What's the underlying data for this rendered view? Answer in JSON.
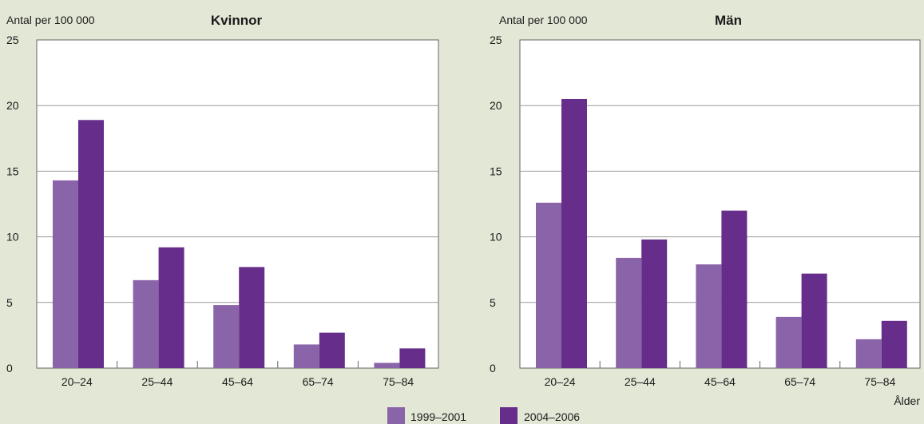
{
  "chart_data": [
    {
      "type": "bar",
      "title": "Kvinnor",
      "ylabel": "Antal per 100 000",
      "xlabel": "",
      "categories": [
        "20–24",
        "25–44",
        "45–64",
        "65–74",
        "75–84"
      ],
      "series": [
        {
          "name": "1999–2001",
          "values": [
            14.3,
            6.7,
            4.8,
            1.8,
            0.4
          ]
        },
        {
          "name": "2004–2006",
          "values": [
            18.9,
            9.2,
            7.7,
            2.7,
            1.5
          ]
        }
      ],
      "ylim": [
        0,
        25
      ],
      "yticks": [
        "0",
        "5",
        "10",
        "15",
        "20",
        "25"
      ],
      "grid": true
    },
    {
      "type": "bar",
      "title": "Män",
      "ylabel": "Antal per 100 000",
      "xlabel": "Ålder",
      "categories": [
        "20–24",
        "25–44",
        "45–64",
        "65–74",
        "75–84"
      ],
      "series": [
        {
          "name": "1999–2001",
          "values": [
            12.6,
            8.4,
            7.9,
            3.9,
            2.2
          ]
        },
        {
          "name": "2004–2006",
          "values": [
            20.5,
            9.8,
            12.0,
            7.2,
            3.6
          ]
        }
      ],
      "ylim": [
        0,
        25
      ],
      "yticks": [
        "0",
        "5",
        "10",
        "15",
        "20",
        "25"
      ],
      "grid": true
    }
  ],
  "legend": {
    "placement": "bottom-center",
    "items": [
      {
        "label": "1999–2001",
        "color": "#8a64a8"
      },
      {
        "label": "2004–2006",
        "color": "#662d8a"
      }
    ]
  },
  "colors": {
    "background": "#e3e7d6",
    "plot_area": "#ffffff",
    "grid": "#999999",
    "axis": "#666666"
  }
}
